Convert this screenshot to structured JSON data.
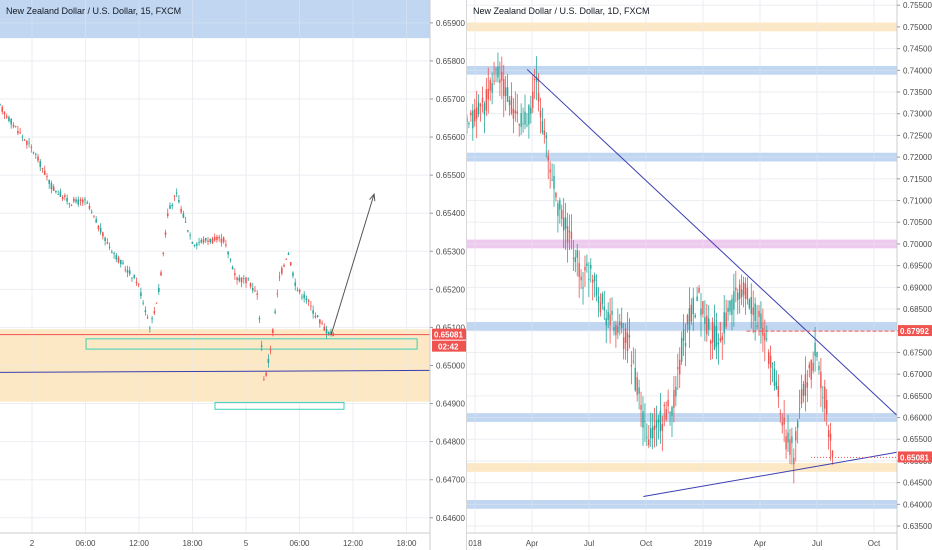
{
  "chart_data": [
    {
      "type": "candlestick",
      "title": "New Zealand Dollar / U.S. Dollar, 15, FXCM",
      "x_ticks": [
        "2",
        "06:00",
        "12:00",
        "18:00",
        "5",
        "06:00",
        "12:00",
        "18:00"
      ],
      "y_ticks": [
        "0.65900",
        "0.65800",
        "0.65700",
        "0.65600",
        "0.65500",
        "0.65400",
        "0.65300",
        "0.65200",
        "0.65100",
        "0.65000",
        "0.64900",
        "0.64800",
        "0.64700",
        "0.64600"
      ],
      "ylim": [
        0.6456,
        0.6596
      ],
      "price_tag": "0.65081",
      "countdown_tag": "02:42",
      "zones": [
        {
          "name": "supply zone",
          "y0": 0.6586,
          "y1": 0.6596,
          "color": "#bcd3f0"
        },
        {
          "name": "support zone",
          "y0": 0.64905,
          "y1": 0.65095,
          "color": "#fbe6bf"
        }
      ],
      "highlight_boxes": [
        {
          "x0": 0.2,
          "x1": 0.97,
          "y0": 0.65043,
          "y1": 0.6507,
          "color": "#3ecfb8"
        },
        {
          "x0": 0.5,
          "x1": 0.8,
          "y0": 0.64885,
          "y1": 0.64903,
          "color": "#3ecfb8"
        }
      ],
      "lines": [
        {
          "name": "level",
          "x0": 0.0,
          "y0": 0.64982,
          "x1": 1.0,
          "y1": 0.64987,
          "color": "#3b3fb0"
        },
        {
          "name": "current price",
          "x0": 0.0,
          "y0": 0.65081,
          "x1": 1.0,
          "y1": 0.65081,
          "color": "#ef5350"
        }
      ],
      "arrow": {
        "x0": 0.77,
        "y0": 0.6508,
        "x1": 0.87,
        "y1": 0.6545
      },
      "path": [
        [
          0.0,
          0.6568
        ],
        [
          0.04,
          0.6562
        ],
        [
          0.08,
          0.6556
        ],
        [
          0.12,
          0.6547
        ],
        [
          0.16,
          0.6543
        ],
        [
          0.2,
          0.6543
        ],
        [
          0.24,
          0.6534
        ],
        [
          0.28,
          0.6527
        ],
        [
          0.32,
          0.6522
        ],
        [
          0.35,
          0.651
        ],
        [
          0.37,
          0.652
        ],
        [
          0.39,
          0.654
        ],
        [
          0.41,
          0.6545
        ],
        [
          0.43,
          0.6538
        ],
        [
          0.45,
          0.6532
        ],
        [
          0.48,
          0.6533
        ],
        [
          0.52,
          0.6533
        ],
        [
          0.55,
          0.6523
        ],
        [
          0.58,
          0.6522
        ],
        [
          0.6,
          0.6518
        ],
        [
          0.615,
          0.6495
        ],
        [
          0.63,
          0.6505
        ],
        [
          0.65,
          0.6523
        ],
        [
          0.67,
          0.653
        ],
        [
          0.69,
          0.652
        ],
        [
          0.71,
          0.6518
        ],
        [
          0.73,
          0.6514
        ],
        [
          0.76,
          0.6509
        ],
        [
          0.775,
          0.65081
        ]
      ]
    },
    {
      "type": "candlestick",
      "title": "New Zealand Dollar / U.S. Dollar, 1D, FXCM",
      "x_ticks": [
        "018",
        "Apr",
        "Jul",
        "Oct",
        "2019",
        "Apr",
        "Jul",
        "Oct"
      ],
      "y_ticks": [
        "0.75500",
        "0.75000",
        "0.74500",
        "0.74000",
        "0.73500",
        "0.73000",
        "0.72500",
        "0.72000",
        "0.71500",
        "0.71000",
        "0.70500",
        "0.70000",
        "0.69500",
        "0.69000",
        "0.68500",
        "0.68000",
        "0.67500",
        "0.67000",
        "0.66500",
        "0.66000",
        "0.65500",
        "0.65000",
        "0.64500",
        "0.64000",
        "0.63500"
      ],
      "ylim": [
        0.6334,
        0.7562
      ],
      "price_tags": [
        "0.67992",
        "0.65081"
      ],
      "zones": [
        {
          "y0": 0.749,
          "y1": 0.751,
          "color": "#fbe6bf"
        },
        {
          "y0": 0.739,
          "y1": 0.741,
          "color": "#bcd3f0"
        },
        {
          "y0": 0.719,
          "y1": 0.721,
          "color": "#bcd3f0"
        },
        {
          "y0": 0.699,
          "y1": 0.701,
          "color": "#ecc7ec"
        },
        {
          "y0": 0.68,
          "y1": 0.682,
          "color": "#bcd3f0"
        },
        {
          "y0": 0.659,
          "y1": 0.661,
          "color": "#bcd3f0"
        },
        {
          "y0": 0.6475,
          "y1": 0.6495,
          "color": "#fbe6bf"
        },
        {
          "y0": 0.639,
          "y1": 0.641,
          "color": "#bcd3f0"
        }
      ],
      "lines": [
        {
          "name": "downtrend",
          "x0": 0.14,
          "y0": 0.7402,
          "x1": 1.0,
          "y1": 0.6605,
          "color": "#3b3fb0"
        },
        {
          "name": "uptrend",
          "x0": 0.41,
          "y0": 0.6418,
          "x1": 1.0,
          "y1": 0.652,
          "color": "#3b3fb0"
        },
        {
          "name": "resistance",
          "x0": 0.65,
          "y0": 0.67992,
          "x1": 1.0,
          "y1": 0.67992,
          "color": "#ef5350",
          "dashed": true
        },
        {
          "name": "price",
          "x0": 0.8,
          "y0": 0.65081,
          "x1": 1.0,
          "y1": 0.65081,
          "color": "#ef5350",
          "dotted": true
        }
      ],
      "path": [
        [
          0.0,
          0.726
        ],
        [
          0.02,
          0.73
        ],
        [
          0.05,
          0.734
        ],
        [
          0.07,
          0.74
        ],
        [
          0.09,
          0.735
        ],
        [
          0.11,
          0.73
        ],
        [
          0.13,
          0.727
        ],
        [
          0.15,
          0.732
        ],
        [
          0.16,
          0.738
        ],
        [
          0.18,
          0.725
        ],
        [
          0.2,
          0.714
        ],
        [
          0.22,
          0.706
        ],
        [
          0.25,
          0.698
        ],
        [
          0.27,
          0.692
        ],
        [
          0.29,
          0.695
        ],
        [
          0.31,
          0.687
        ],
        [
          0.33,
          0.683
        ],
        [
          0.36,
          0.679
        ],
        [
          0.38,
          0.676
        ],
        [
          0.4,
          0.664
        ],
        [
          0.42,
          0.654
        ],
        [
          0.44,
          0.658
        ],
        [
          0.46,
          0.66
        ],
        [
          0.48,
          0.664
        ],
        [
          0.5,
          0.676
        ],
        [
          0.52,
          0.684
        ],
        [
          0.54,
          0.688
        ],
        [
          0.56,
          0.681
        ],
        [
          0.58,
          0.678
        ],
        [
          0.6,
          0.682
        ],
        [
          0.62,
          0.686
        ],
        [
          0.64,
          0.69
        ],
        [
          0.66,
          0.687
        ],
        [
          0.68,
          0.682
        ],
        [
          0.7,
          0.676
        ],
        [
          0.72,
          0.668
        ],
        [
          0.74,
          0.656
        ],
        [
          0.76,
          0.652
        ],
        [
          0.78,
          0.666
        ],
        [
          0.8,
          0.67
        ],
        [
          0.81,
          0.676
        ],
        [
          0.83,
          0.666
        ],
        [
          0.845,
          0.655
        ],
        [
          0.85,
          0.65081
        ]
      ]
    }
  ]
}
